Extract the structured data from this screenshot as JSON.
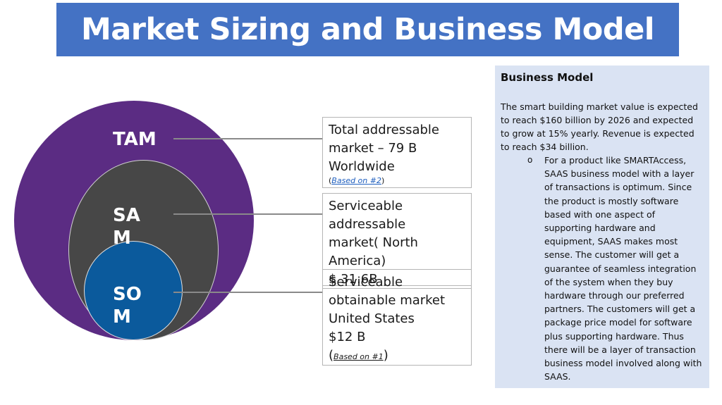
{
  "title": "Market Sizing and Business Model",
  "diagram": {
    "tam_label": "TAM",
    "sam_label": "SAM",
    "som_label": "SOM"
  },
  "boxes": {
    "tam": {
      "line1": "Total addressable",
      "line2": "market – 79 B",
      "line3": "Worldwide",
      "ref_open": "(",
      "ref_link": "Based on #2",
      "ref_close": ")"
    },
    "sam": {
      "line1": "Serviceable",
      "line2": "addressable",
      "line3": "market( North",
      "line4": "America)",
      "line5": "$ 31.6B"
    },
    "som": {
      "line1": "Serviceable",
      "line2": "obtainable market",
      "line3": "United States",
      "line4": "$12 B",
      "ref_open": "(",
      "ref_link": "Based on #1",
      "ref_close": ")"
    }
  },
  "panel": {
    "title": "Business Model",
    "paragraph": "The smart building market value is expected to reach $160 billion by 2026 and expected to grow at 15% yearly. Revenue is expected to reach $34 billion.",
    "bullet_marker": "o",
    "bullet": "For a product like SMARTAccess, SAAS business model with a layer of transactions is optimum. Since the product is mostly software based with one aspect of supporting hardware and equipment, SAAS makes most sense. The customer will get a guarantee of seamless integration of the system when they buy hardware through our preferred partners.  The customers will get a package price model for software plus supporting hardware. Thus there will be a layer of transaction business model involved along with SAAS."
  },
  "colors": {
    "title_bg": "#4472c4",
    "tam": "#5b2c83",
    "sam": "#474747",
    "som": "#0b5a9c",
    "panel_bg": "#dae3f3"
  }
}
